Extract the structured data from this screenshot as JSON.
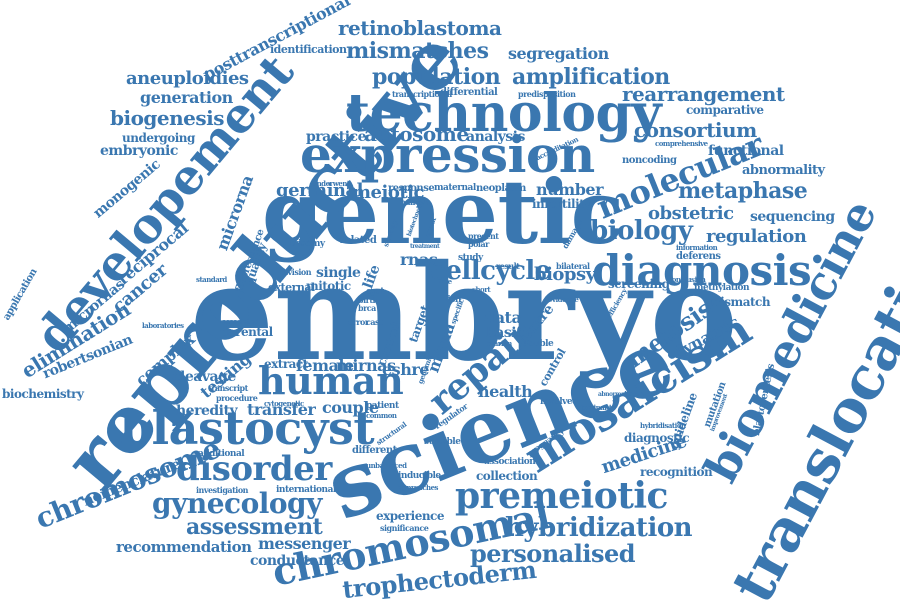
{
  "theme": {
    "word_color": "#3a77b0",
    "background": "#ffffff"
  },
  "words": {
    "embryo": "embryo",
    "genetic": "genetic",
    "reproductive": "reproductive",
    "science": "science",
    "expression": "expression",
    "technology": "technology",
    "development": "developement",
    "diagnosis": "diagnosis",
    "translocation": "translocation",
    "biomedicine": "biomedicine",
    "mosaicism": "mosaicism",
    "blastocyst": "blastocyst",
    "human": "human",
    "disorder": "disorder",
    "premeiotic": "premeiotic",
    "chromosomal": "chromosomal",
    "chromosome": "chromosome",
    "hybridization": "hybridization",
    "personalised": "personalised",
    "trophectoderm": "trophectoderm",
    "repair": "repair",
    "cellcycle": "cellcycle",
    "gynecology": "gynecology",
    "assessment": "assessment",
    "molecular": "molecular",
    "biology": "biology",
    "metaphase": "metaphase",
    "consortium": "consortium",
    "rearrangement": "rearrangement",
    "amplification": "amplification",
    "population": "population",
    "mismatches": "mismatches",
    "retinoblastoma": "retinoblastoma",
    "posttranscriptional": "posttranscriptional",
    "identification": "identification",
    "segregation": "segregation",
    "aneuploidies": "aneuploidies",
    "generation": "generation",
    "biogenesis": "biogenesis",
    "undergoing": "undergoing",
    "embryonic": "embryonic",
    "monogenic": "monogenic",
    "microrna": "microrna",
    "micrornas": "micrornas",
    "reciprocal": "reciprocal",
    "cancer": "cancer",
    "elimination": "elimination",
    "robertsonian": "robertsonian",
    "application": "application",
    "biochemistry": "biochemistry",
    "complex": "complex",
    "cleavage": "cleavage",
    "testing": "testing",
    "heredity": "heredity",
    "transfer": "transfer",
    "couple": "couple",
    "nomenclature": "nomenclature",
    "recommendation": "recommendation",
    "messenger": "messenger",
    "conductance": "conductance",
    "meiosis": "meiosis",
    "dynamic": "dynamic",
    "medicine": "medicine",
    "guideline": "guideline",
    "blastocentesis": "blastocentesis",
    "mismatch": "mismatch",
    "regulation": "regulation",
    "sequencing": "sequencing",
    "obstetric": "obstetric",
    "abnormality": "abnormality",
    "functional": "functional",
    "comparative": "comparative",
    "noncoding": "noncoding",
    "autosome": "autosome",
    "analysis": "analysis",
    "practice": "practice",
    "germinal": "germinal",
    "meiotic": "meiotic",
    "number": "number",
    "infertility": "infertility",
    "health": "health",
    "collection": "collection",
    "association": "association",
    "experience": "experience",
    "significance": "significance",
    "recognition": "recognition",
    "diagnostic": "diagnostic",
    "mutation": "mutation",
    "screening": "screening",
    "biopsy": "biopsy",
    "differential": "differential",
    "predisposition": "predisposition",
    "transcriptional": "transcriptional",
    "accreditation": "accreditation",
    "efficiency": "efficiency",
    "deferens": "deferens",
    "information": "information",
    "methylation": "methylation",
    "data": "data",
    "basic": "basic",
    "centre": "centre",
    "mirna": "mirna",
    "rnas": "rnas",
    "single": "single",
    "mitotic": "mitotic",
    "external": "external",
    "division": "division",
    "trisomy": "trisomy",
    "related": "related",
    "female": "female",
    "mirnas": "mirnas",
    "eshre": "eshre",
    "extract": "extract",
    "clinical": "clinical",
    "target": "target",
    "life": "life",
    "parental": "parental",
    "additional": "additional",
    "investigation": "investigation",
    "international": "international",
    "procedure": "procedure",
    "fluorescence": "fluorescence",
    "quality": "quality",
    "standard": "standard",
    "laboratories": "laboratories",
    "maternal": "maternal",
    "neoplasm": "neoplasm",
    "response": "response",
    "underwent": "underwent",
    "hairpin": "hairpin",
    "regulator": "regulator",
    "pregnancy": "pregnancy",
    "control": "control",
    "suitable": "suitable",
    "involved": "involved",
    "double": "double",
    "study": "study",
    "result": "result",
    "bilateral": "bilateral",
    "present": "present",
    "polar": "polar",
    "inducible": "inducible",
    "approaches": "approaches",
    "unbalanced": "unbalanced",
    "patient": "patient",
    "different": "different",
    "comprehensive": "comprehensive",
    "conclusion": "conclusion",
    "hybridisation": "hybridisation",
    "fish": "fish",
    "birth": "birth",
    "brca": "brca",
    "strategy": "strategy",
    "dominant": "dominant",
    "cytogenetic": "cytogenetic",
    "common": "common",
    "evidence": "evidence",
    "improvement": "improvement",
    "damage": "damage",
    "structural": "structural",
    "transcript": "transcript",
    "cyst": "cyst",
    "case": "case",
    "arrest": "arrest",
    "error": "error",
    "biotechnology": "biotechnology",
    "associated": "associated",
    "ovarian": "ovarian",
    "treatment": "treatment",
    "abnormalities": "abnormalities",
    "free": "free",
    "short": "short",
    "genomic": "genomic",
    "specific": "specific"
  }
}
